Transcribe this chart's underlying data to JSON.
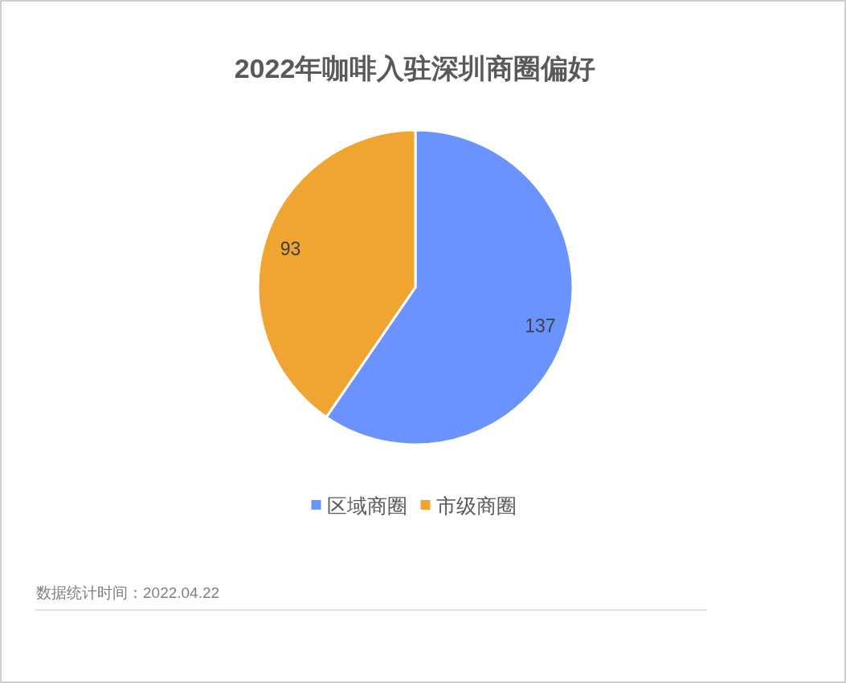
{
  "chart_data": {
    "type": "pie",
    "title": "2022年咖啡入驻深圳商圈偏好",
    "categories": [
      "区域商圈",
      "市级商圈"
    ],
    "values": [
      137,
      93
    ],
    "colors": [
      "#6b93fd",
      "#f0a532"
    ],
    "data_labels": true,
    "legend": "bottom",
    "annotations": [
      "数据统计时间：2022.04.22"
    ]
  }
}
